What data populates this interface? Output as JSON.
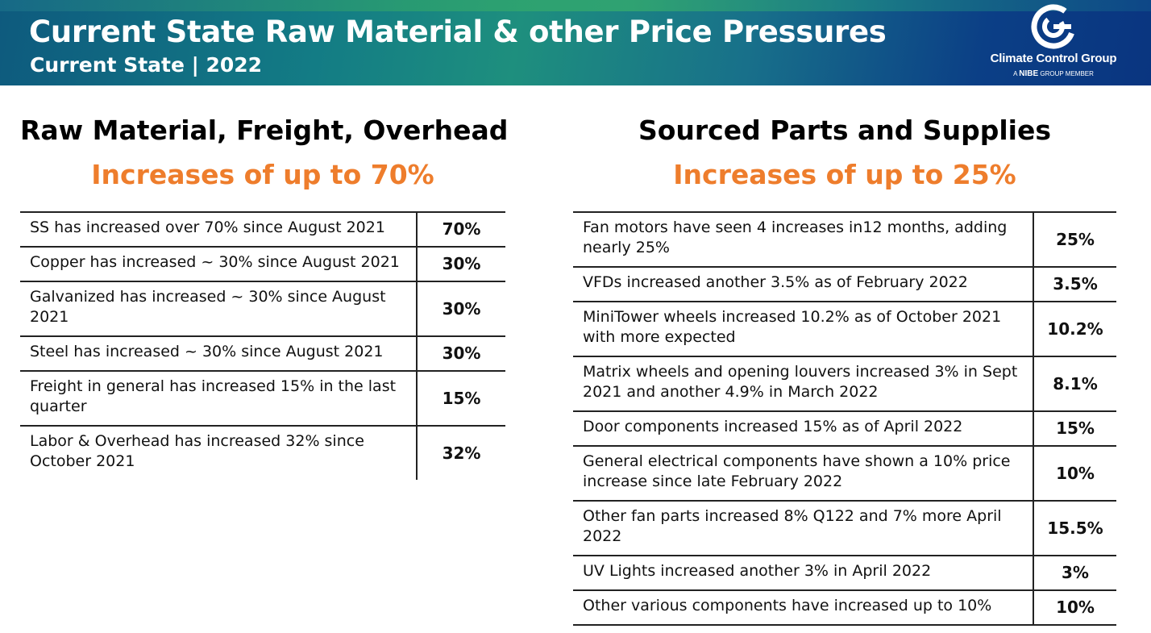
{
  "header": {
    "title": "Current State Raw Material & other Price Pressures",
    "subtitle": "Current State | 2022",
    "logo": {
      "name": "Climate Control Group",
      "tagline_prefix": "A",
      "tagline_brand": "NIBE",
      "tagline_suffix": "GROUP MEMBER"
    }
  },
  "left": {
    "heading": "Raw Material, Freight, Overhead",
    "highlight": "Increases of up to 70%",
    "rows": [
      {
        "text": "SS has increased over 70% since August 2021",
        "value": "70%"
      },
      {
        "text": "Copper has increased ~ 30% since August 2021",
        "value": "30%"
      },
      {
        "text": "Galvanized has increased ~ 30% since August 2021",
        "value": "30%"
      },
      {
        "text": "Steel has increased ~ 30% since August 2021",
        "value": "30%"
      },
      {
        "text": "Freight in general has increased 15% in the last quarter",
        "value": "15%"
      },
      {
        "text": "Labor & Overhead has increased 32% since October 2021",
        "value": "32%"
      }
    ]
  },
  "right": {
    "heading": "Sourced Parts and Supplies",
    "highlight": "Increases of up to 25%",
    "rows": [
      {
        "text": "Fan motors have seen 4 increases in12 months, adding nearly 25%",
        "value": "25%"
      },
      {
        "text": "VFDs increased another 3.5% as of February 2022",
        "value": "3.5%"
      },
      {
        "text": "MiniTower wheels increased 10.2% as of October 2021 with more expected",
        "value": "10.2%"
      },
      {
        "text": "Matrix wheels and opening louvers increased 3% in Sept 2021 and another 4.9% in March 2022",
        "value": "8.1%"
      },
      {
        "text": "Door components increased 15% as of April 2022",
        "value": "15%"
      },
      {
        "text": "General electrical components have shown a 10% price increase since late February 2022",
        "value": "10%"
      },
      {
        "text": "Other fan parts increased 8% Q122 and 7% more April 2022",
        "value": "15.5%"
      },
      {
        "text": "UV Lights increased another 3% in April 2022",
        "value": "3%"
      },
      {
        "text": "Other various components have increased up to 10%",
        "value": "10%"
      }
    ]
  },
  "colors": {
    "accent_orange": "#ee7d2c",
    "banner_teal": "#137c85",
    "banner_blue": "#0a3580"
  }
}
